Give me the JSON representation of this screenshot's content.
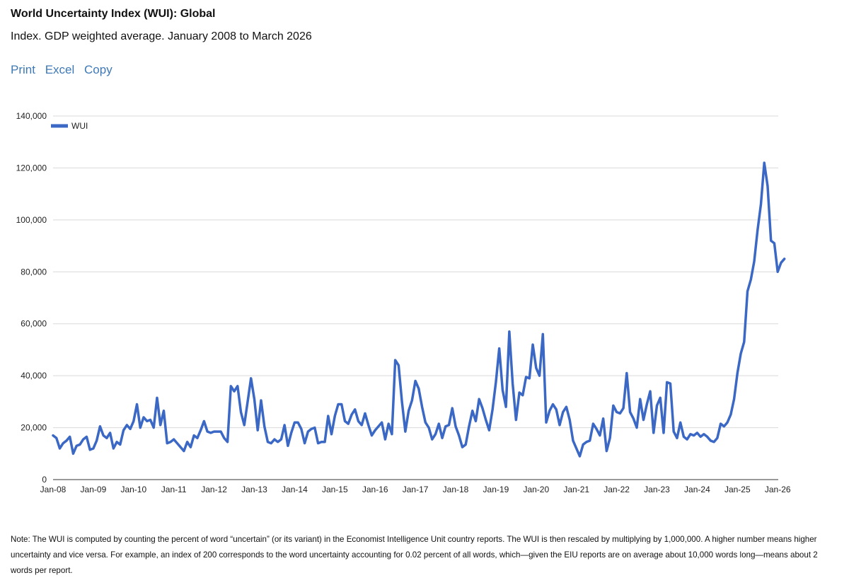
{
  "header": {
    "title": "World Uncertainty Index (WUI): Global",
    "subtitle": "Index. GDP weighted average. January 2008 to March 2026"
  },
  "actions": {
    "print": "Print",
    "excel": "Excel",
    "copy": "Copy"
  },
  "note": "Note: The WUI is computed by counting the percent of word “uncertain” (or its variant) in the Economist Intelligence Unit country reports. The WUI is then rescaled by multiplying by 1,000,000. A higher number means higher uncertainty and vice versa. For example, an index of 200 corresponds to the word uncertainty accounting for 0.02 percent of all words, which—given the EIU reports are on average about 10,000 words long—means about 2 words per report.",
  "colors": {
    "series": "#3a68c4",
    "grid": "#d9d9d9",
    "link": "#3e79b6"
  },
  "chart_data": {
    "type": "line",
    "title": "",
    "xlabel": "",
    "ylabel": "",
    "legend_position": "top-left",
    "grid": true,
    "ylim": [
      0,
      140000
    ],
    "y_ticks": [
      0,
      20000,
      40000,
      60000,
      80000,
      100000,
      120000,
      140000
    ],
    "y_tick_labels": [
      "0",
      "20,000",
      "40,000",
      "60,000",
      "80,000",
      "100,000",
      "120,000",
      "140,000"
    ],
    "x_range": [
      "2008-01",
      "2026-03"
    ],
    "x_tick_labels": [
      "Jan-08",
      "Jan-09",
      "Jan-10",
      "Jan-11",
      "Jan-12",
      "Jan-13",
      "Jan-14",
      "Jan-15",
      "Jan-16",
      "Jan-17",
      "Jan-18",
      "Jan-19",
      "Jan-20",
      "Jan-21",
      "Jan-22",
      "Jan-23",
      "Jan-24",
      "Jan-25",
      "Jan-26"
    ],
    "series": [
      {
        "name": "WUI",
        "x": [
          "2008-01",
          "2008-02",
          "2008-03",
          "2008-04",
          "2008-05",
          "2008-06",
          "2008-07",
          "2008-08",
          "2008-09",
          "2008-10",
          "2008-11",
          "2008-12",
          "2009-01",
          "2009-02",
          "2009-03",
          "2009-04",
          "2009-05",
          "2009-06",
          "2009-07",
          "2009-08",
          "2009-09",
          "2009-10",
          "2009-11",
          "2009-12",
          "2010-01",
          "2010-02",
          "2010-03",
          "2010-04",
          "2010-05",
          "2010-06",
          "2010-07",
          "2010-08",
          "2010-09",
          "2010-10",
          "2010-11",
          "2010-12",
          "2011-01",
          "2011-02",
          "2011-03",
          "2011-04",
          "2011-05",
          "2011-06",
          "2011-07",
          "2011-08",
          "2011-09",
          "2011-10",
          "2011-11",
          "2011-12",
          "2012-01",
          "2012-02",
          "2012-03",
          "2012-04",
          "2012-05",
          "2012-06",
          "2012-07",
          "2012-08",
          "2012-09",
          "2012-10",
          "2012-11",
          "2012-12",
          "2013-01",
          "2013-02",
          "2013-03",
          "2013-04",
          "2013-05",
          "2013-06",
          "2013-07",
          "2013-08",
          "2013-09",
          "2013-10",
          "2013-11",
          "2013-12",
          "2014-01",
          "2014-02",
          "2014-03",
          "2014-04",
          "2014-05",
          "2014-06",
          "2014-07",
          "2014-08",
          "2014-09",
          "2014-10",
          "2014-11",
          "2014-12",
          "2015-01",
          "2015-02",
          "2015-03",
          "2015-04",
          "2015-05",
          "2015-06",
          "2015-07",
          "2015-08",
          "2015-09",
          "2015-10",
          "2015-11",
          "2015-12",
          "2016-01",
          "2016-02",
          "2016-03",
          "2016-04",
          "2016-05",
          "2016-06",
          "2016-07",
          "2016-08",
          "2016-09",
          "2016-10",
          "2016-11",
          "2016-12",
          "2017-01",
          "2017-02",
          "2017-03",
          "2017-04",
          "2017-05",
          "2017-06",
          "2017-07",
          "2017-08",
          "2017-09",
          "2017-10",
          "2017-11",
          "2017-12",
          "2018-01",
          "2018-02",
          "2018-03",
          "2018-04",
          "2018-05",
          "2018-06",
          "2018-07",
          "2018-08",
          "2018-09",
          "2018-10",
          "2018-11",
          "2018-12",
          "2019-01",
          "2019-02",
          "2019-03",
          "2019-04",
          "2019-05",
          "2019-06",
          "2019-07",
          "2019-08",
          "2019-09",
          "2019-10",
          "2019-11",
          "2019-12",
          "2020-01",
          "2020-02",
          "2020-03",
          "2020-04",
          "2020-05",
          "2020-06",
          "2020-07",
          "2020-08",
          "2020-09",
          "2020-10",
          "2020-11",
          "2020-12",
          "2021-01",
          "2021-02",
          "2021-03",
          "2021-04",
          "2021-05",
          "2021-06",
          "2021-07",
          "2021-08",
          "2021-09",
          "2021-10",
          "2021-11",
          "2021-12",
          "2022-01",
          "2022-02",
          "2022-03",
          "2022-04",
          "2022-05",
          "2022-06",
          "2022-07",
          "2022-08",
          "2022-09",
          "2022-10",
          "2022-11",
          "2022-12",
          "2023-01",
          "2023-02",
          "2023-03",
          "2023-04",
          "2023-05",
          "2023-06",
          "2023-07",
          "2023-08",
          "2023-09",
          "2023-10",
          "2023-11",
          "2023-12",
          "2024-01",
          "2024-02",
          "2024-03",
          "2024-04",
          "2024-05",
          "2024-06",
          "2024-07",
          "2024-08",
          "2024-09",
          "2024-10",
          "2024-11",
          "2024-12",
          "2025-01",
          "2025-02",
          "2025-03",
          "2025-04",
          "2025-05",
          "2025-06",
          "2025-07",
          "2025-08",
          "2025-09",
          "2025-10",
          "2025-11",
          "2025-12",
          "2026-01",
          "2026-02",
          "2026-03"
        ],
        "values": [
          17000,
          16000,
          12000,
          14000,
          15000,
          16500,
          10000,
          13000,
          13500,
          15500,
          16500,
          11500,
          12000,
          15000,
          20500,
          17000,
          16000,
          18000,
          12000,
          14500,
          13500,
          19000,
          21000,
          19500,
          22500,
          29000,
          20000,
          24000,
          22500,
          23000,
          20000,
          31500,
          21000,
          26500,
          14000,
          14500,
          15500,
          14000,
          12500,
          11000,
          14500,
          12500,
          17000,
          16000,
          19000,
          22500,
          18500,
          18000,
          18500,
          18500,
          18500,
          16000,
          14500,
          36000,
          34000,
          36000,
          26000,
          21000,
          30000,
          39000,
          31000,
          19000,
          30500,
          20500,
          14500,
          14000,
          15500,
          14500,
          15500,
          21000,
          13000,
          18000,
          22000,
          22000,
          19500,
          14000,
          18500,
          19500,
          20000,
          14000,
          14500,
          14500,
          24500,
          17500,
          24500,
          29000,
          29000,
          22500,
          21500,
          25000,
          27000,
          22500,
          21000,
          25500,
          21000,
          17000,
          19000,
          20500,
          22000,
          15500,
          21500,
          17500,
          46000,
          44000,
          30000,
          18500,
          26500,
          30500,
          38000,
          35000,
          28000,
          22000,
          20000,
          15500,
          17500,
          21500,
          16000,
          20500,
          21000,
          27500,
          20500,
          17000,
          12500,
          13500,
          20500,
          26500,
          22500,
          31000,
          27500,
          23000,
          19000,
          27000,
          37500,
          50500,
          34500,
          28000,
          57000,
          37000,
          23000,
          33500,
          32500,
          39500,
          39000,
          52000,
          43000,
          40000,
          56000,
          22000,
          26500,
          29000,
          27000,
          21000,
          26000,
          28000,
          23000,
          15000,
          12000,
          9000,
          13500,
          14500,
          15000,
          21500,
          19500,
          17000,
          23500,
          11000,
          16000,
          28500,
          26000,
          25500,
          27500,
          41000,
          26000,
          23500,
          20000,
          31000,
          23000,
          29000,
          34000,
          18000,
          28500,
          31500,
          18000,
          37500,
          37000,
          18500,
          16000,
          22000,
          16500,
          15500,
          17500,
          17000,
          18000,
          16500,
          17500,
          16500,
          15000,
          14500,
          16000,
          21500,
          20500,
          22000,
          25000,
          31000,
          41000,
          48500,
          53000,
          72500,
          77000,
          84000,
          96000,
          106000,
          122000,
          113000,
          92000,
          91000,
          80000,
          83500,
          85000
        ]
      }
    ]
  }
}
